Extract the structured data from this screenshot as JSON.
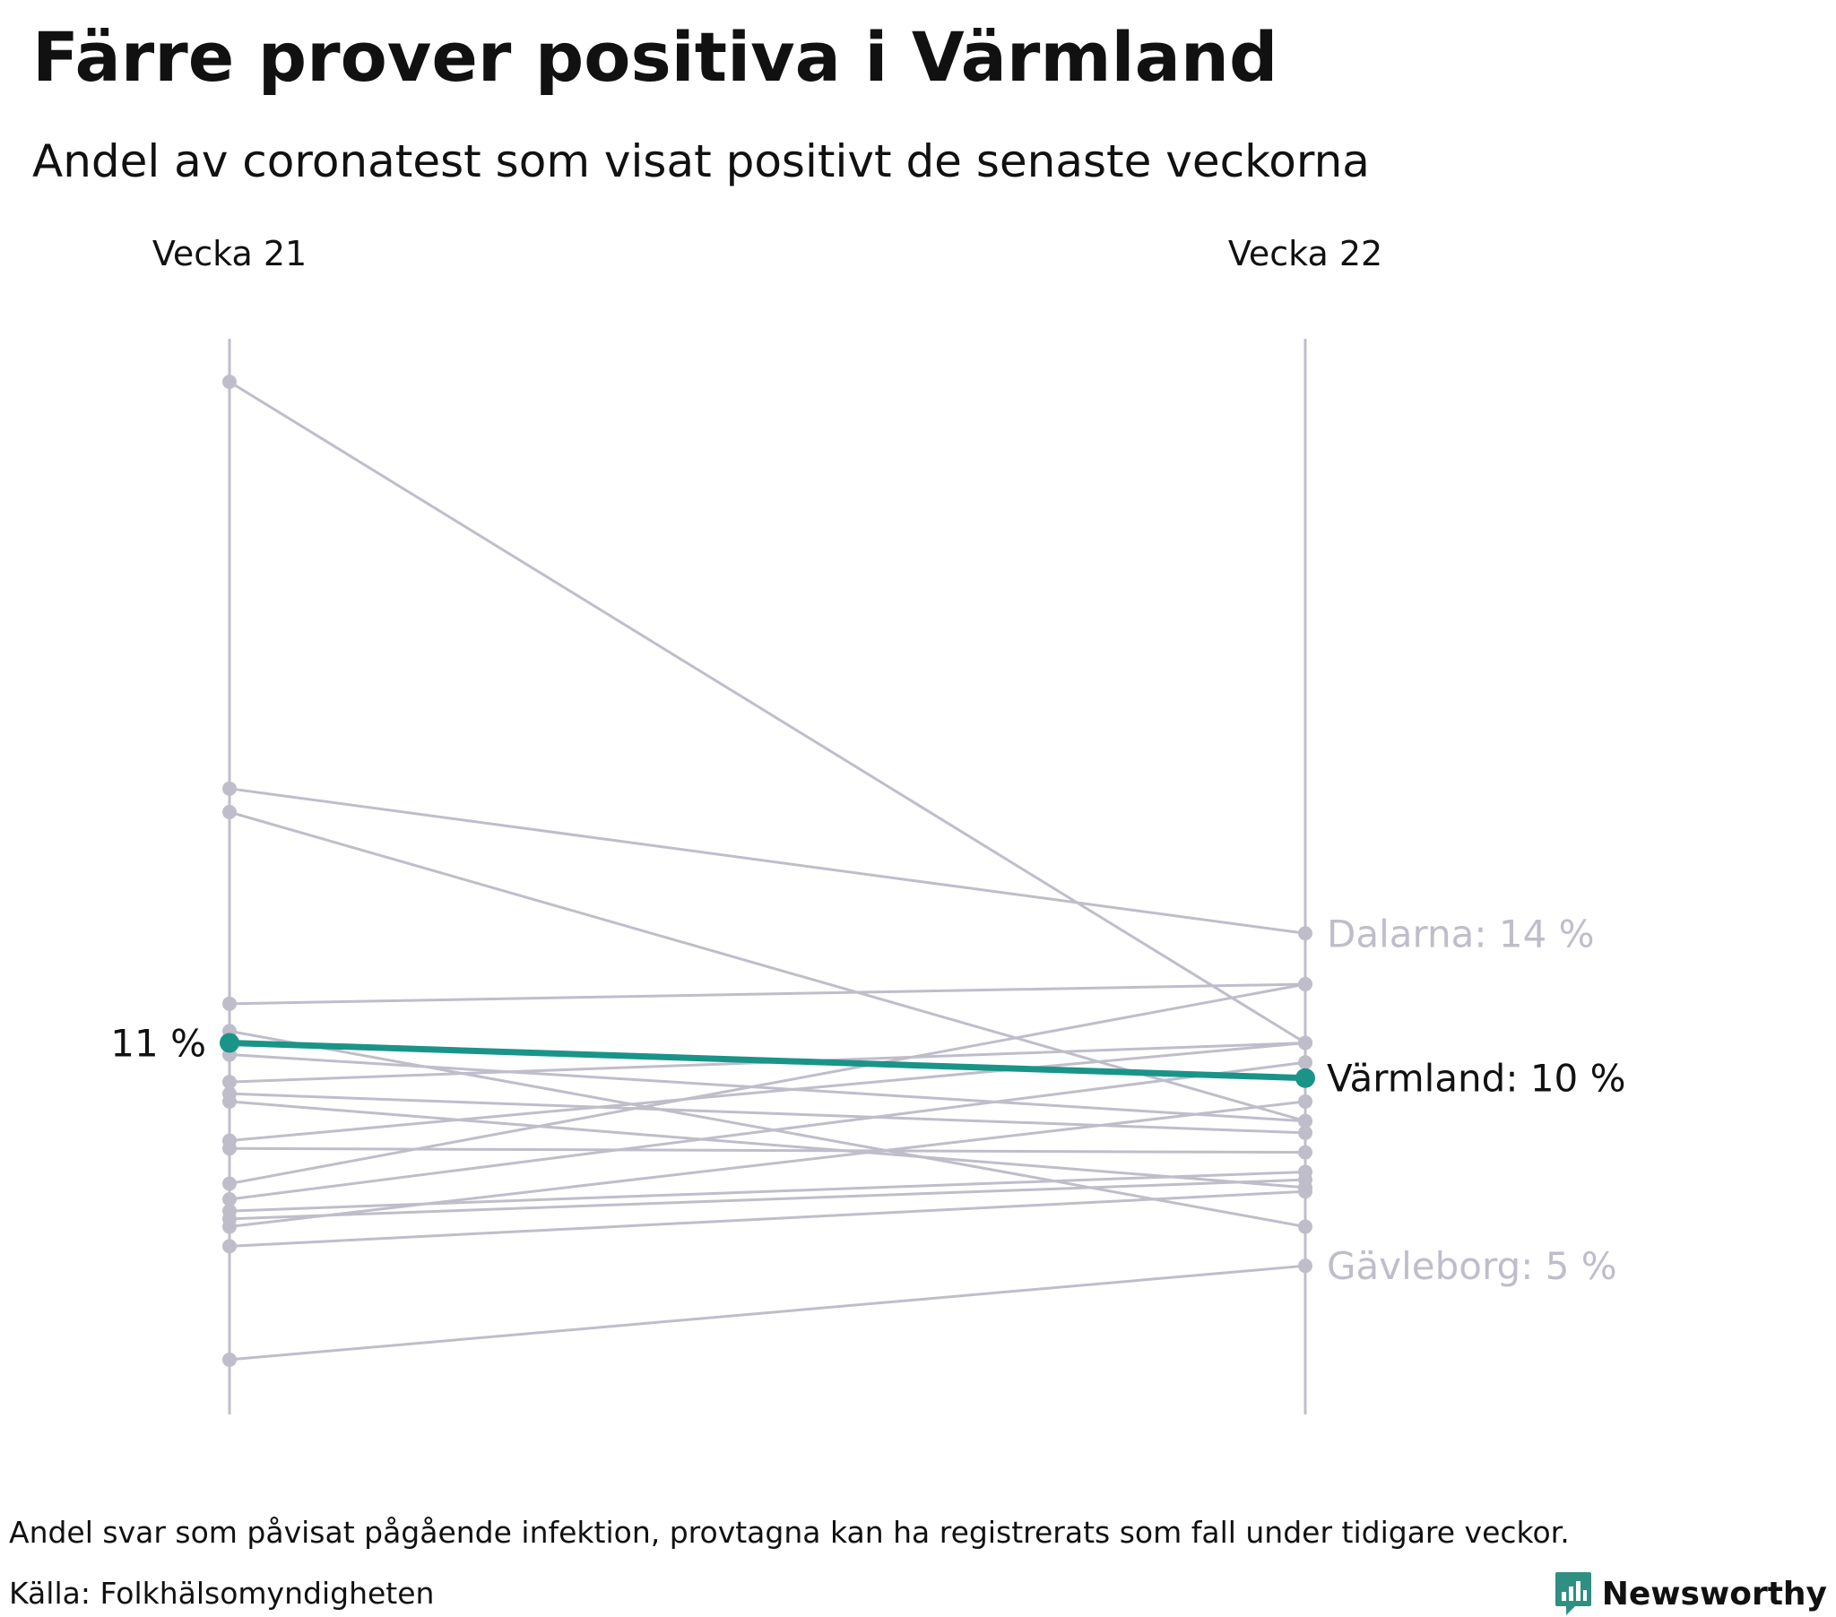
{
  "chart_data": {
    "type": "slope",
    "title": "Färre prover positiva i Värmland",
    "subtitle": "Andel av coronatest som visat positivt de senaste veckorna",
    "x": [
      "Vecka 21",
      "Vecka 22"
    ],
    "unit": "%",
    "ylim": [
      1.5,
      29
    ],
    "highlight": {
      "name": "Värmland",
      "values": [
        11.0,
        10.1
      ],
      "start_label": "11 %",
      "end_label": "Värmland: 10 %",
      "color": "#1a9488"
    },
    "labeled": [
      {
        "name": "Dalarna",
        "end_label": "Dalarna: 14 %"
      },
      {
        "name": "Gävleborg",
        "end_label": "Gävleborg: 5 %"
      }
    ],
    "series": [
      {
        "name": "",
        "values": [
          27.9,
          11.0
        ]
      },
      {
        "name": "Dalarna",
        "values": [
          17.5,
          13.8
        ]
      },
      {
        "name": "",
        "values": [
          16.9,
          9.0
        ]
      },
      {
        "name": "",
        "values": [
          12.0,
          12.5
        ]
      },
      {
        "name": "",
        "values": [
          11.3,
          6.3
        ]
      },
      {
        "name": "",
        "values": [
          10.7,
          9.0
        ]
      },
      {
        "name": "",
        "values": [
          10.0,
          11.0
        ]
      },
      {
        "name": "",
        "values": [
          9.7,
          8.7
        ]
      },
      {
        "name": "",
        "values": [
          9.5,
          7.3
        ]
      },
      {
        "name": "",
        "values": [
          8.5,
          11.0
        ]
      },
      {
        "name": "",
        "values": [
          8.3,
          8.2
        ]
      },
      {
        "name": "",
        "values": [
          7.4,
          12.5
        ]
      },
      {
        "name": "",
        "values": [
          7.0,
          10.5
        ]
      },
      {
        "name": "",
        "values": [
          6.7,
          7.7
        ]
      },
      {
        "name": "",
        "values": [
          6.5,
          7.5
        ]
      },
      {
        "name": "",
        "values": [
          6.3,
          9.5
        ]
      },
      {
        "name": "",
        "values": [
          5.8,
          7.2
        ]
      },
      {
        "name": "Gävleborg",
        "values": [
          2.9,
          5.3
        ]
      }
    ],
    "colors": {
      "background_line": "#c0bdcb",
      "axis": "#c0bdcb",
      "highlight": "#1a9488",
      "text": "#111111"
    }
  },
  "footnote": "Andel svar som påvisat pågående infektion, provtagna kan ha registrerats som fall under tidigare veckor.",
  "source": "Källa: Folkhälsomyndigheten",
  "brand": {
    "name": "Newsworthy",
    "icon": "newsworthy-logo-icon",
    "color": "#2f8f82"
  }
}
